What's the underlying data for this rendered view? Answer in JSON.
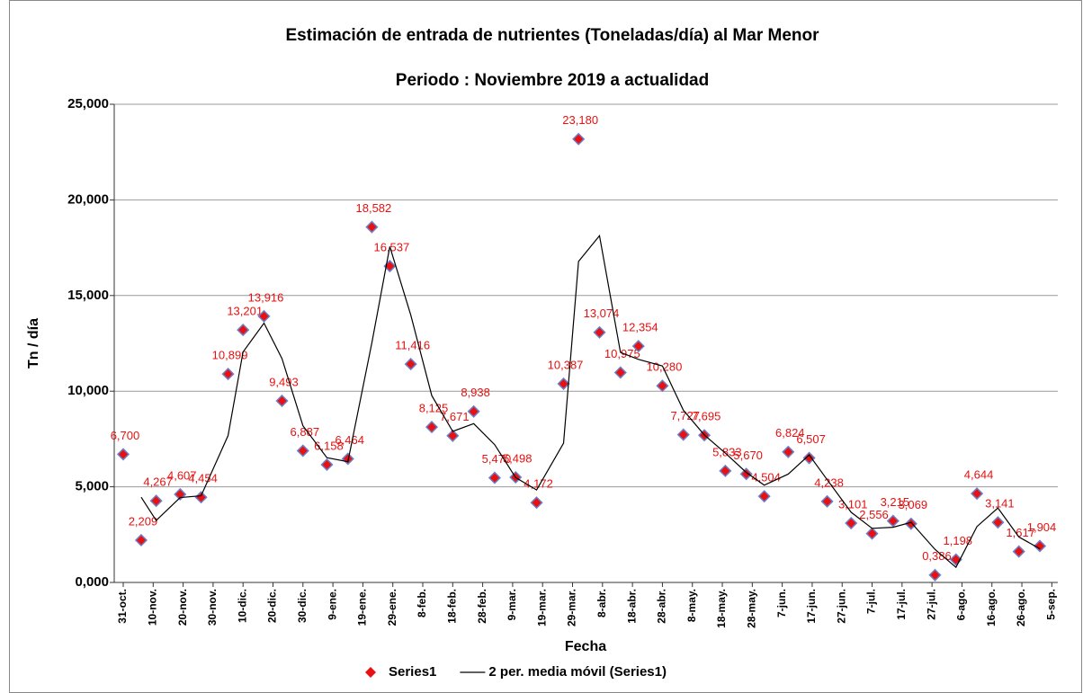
{
  "chart_data": {
    "type": "scatter",
    "title": "Estimación de entrada de nutrientes (Toneladas/día) al  Mar Menor",
    "subtitle": "Periodo : Noviembre 2019 a actualidad",
    "y_label": "Tn  / día",
    "x_label": "Fecha",
    "xlim": [
      -3,
      312
    ],
    "xticks": [
      {
        "value": 0,
        "label": "31-oct."
      },
      {
        "value": 10,
        "label": "10-nov."
      },
      {
        "value": 20,
        "label": "20-nov."
      },
      {
        "value": 30,
        "label": "30-nov."
      },
      {
        "value": 40,
        "label": "10-dic."
      },
      {
        "value": 50,
        "label": "20-dic."
      },
      {
        "value": 60,
        "label": "30-dic."
      },
      {
        "value": 70,
        "label": "9-ene."
      },
      {
        "value": 80,
        "label": "19-ene."
      },
      {
        "value": 90,
        "label": "29-ene."
      },
      {
        "value": 100,
        "label": "8-feb."
      },
      {
        "value": 110,
        "label": "18-feb."
      },
      {
        "value": 120,
        "label": "28-feb."
      },
      {
        "value": 130,
        "label": "9-mar."
      },
      {
        "value": 140,
        "label": "19-mar."
      },
      {
        "value": 150,
        "label": "29-mar."
      },
      {
        "value": 160,
        "label": "8-abr."
      },
      {
        "value": 170,
        "label": "18-abr."
      },
      {
        "value": 180,
        "label": "28-abr."
      },
      {
        "value": 190,
        "label": "8-may."
      },
      {
        "value": 200,
        "label": "18-may."
      },
      {
        "value": 210,
        "label": "28-may."
      },
      {
        "value": 220,
        "label": "7-jun."
      },
      {
        "value": 230,
        "label": "17-jun."
      },
      {
        "value": 240,
        "label": "27-jun."
      },
      {
        "value": 250,
        "label": "7-jul."
      },
      {
        "value": 260,
        "label": "17-jul."
      },
      {
        "value": 270,
        "label": "27-jul."
      },
      {
        "value": 280,
        "label": "6-ago."
      },
      {
        "value": 290,
        "label": "16-ago."
      },
      {
        "value": 300,
        "label": "26-ago."
      },
      {
        "value": 310,
        "label": "5-sep."
      }
    ],
    "ylim": [
      0,
      25
    ],
    "yticks": [
      {
        "value": 0,
        "label": "0,000"
      },
      {
        "value": 5,
        "label": "5,000"
      },
      {
        "value": 10,
        "label": "10,000"
      },
      {
        "value": 15,
        "label": "15,000"
      },
      {
        "value": 20,
        "label": "20,000"
      },
      {
        "value": 25,
        "label": "25,000"
      }
    ],
    "grid": true,
    "legend": "bottom",
    "x": [
      0,
      6,
      11,
      19,
      26,
      35,
      40,
      47,
      53,
      60,
      68,
      75,
      83,
      89,
      96,
      103,
      110,
      117,
      124,
      131,
      138,
      147,
      152,
      159,
      166,
      172,
      180,
      187,
      194,
      201,
      208,
      214,
      222,
      229,
      235,
      243,
      250,
      257,
      263,
      271,
      278,
      285,
      292,
      299,
      306
    ],
    "series": [
      {
        "name": "Series1",
        "type": "scatter",
        "color": "#e81010",
        "values": [
          6.7,
          2.209,
          4.267,
          4.607,
          4.454,
          10.899,
          13.201,
          13.916,
          9.493,
          6.887,
          6.158,
          6.464,
          18.582,
          16.537,
          11.416,
          8.125,
          7.671,
          8.938,
          5.47,
          5.498,
          4.172,
          10.387,
          23.18,
          13.074,
          10.975,
          12.354,
          10.28,
          7.727,
          7.695,
          5.833,
          5.67,
          4.504,
          6.824,
          6.507,
          4.238,
          3.101,
          2.556,
          3.215,
          3.069,
          0.386,
          1.198,
          4.644,
          3.141,
          1.617,
          1.904
        ],
        "value_labels": [
          "6,700",
          "2,209",
          "4,267",
          "4,607",
          "4,454",
          "10,899",
          "13,201",
          "13,916",
          "9,493",
          "6,887",
          "6,158",
          "6,464",
          "18,582",
          "16,537",
          "11,416",
          "8,125",
          "7,671",
          "8,938",
          "5,470",
          "5,498",
          "4,172",
          "10,387",
          "23,180",
          "13,074",
          "10,975",
          "12,354",
          "10,280",
          "7,727",
          "7,695",
          "5,833",
          "5,670",
          "4,504",
          "6,824",
          "6,507",
          "4,238",
          "3,101",
          "2,556",
          "3,215",
          "3,069",
          "0,386",
          "1,198",
          "4,644",
          "3,141",
          "1,617",
          "1,904"
        ]
      },
      {
        "name": "2 per. media móvil (Series1)",
        "type": "line",
        "color": "#000000",
        "values": [
          null,
          4.4545,
          3.238,
          4.437,
          4.5305,
          7.6765,
          12.05,
          13.5585,
          11.7045,
          8.19,
          6.5225,
          6.311,
          12.523,
          17.5595,
          13.9765,
          9.7705,
          7.898,
          8.3045,
          7.204,
          5.484,
          4.835,
          7.2795,
          16.7835,
          18.127,
          12.0245,
          11.6645,
          11.317,
          9.0035,
          7.711,
          6.764,
          5.7515,
          5.087,
          5.664,
          6.6655,
          5.3725,
          3.6695,
          2.8285,
          2.8855,
          3.142,
          1.7275,
          0.792,
          2.921,
          3.8925,
          2.379,
          1.7605
        ]
      }
    ]
  }
}
